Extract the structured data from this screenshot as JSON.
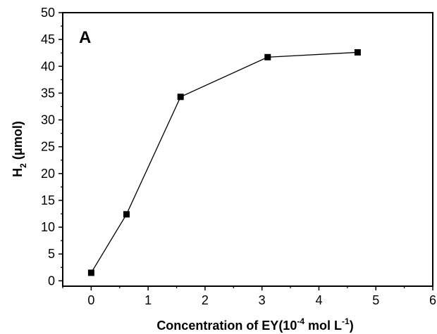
{
  "chart_data": {
    "type": "line",
    "panel_label": "A",
    "xlabel": {
      "main": "Concentration of EY(10",
      "sup1": "-4",
      "mid": " mol L",
      "sup2": "-1",
      "end": ")"
    },
    "ylabel": {
      "main": "H",
      "sub": "2",
      "rest": " (μmol)"
    },
    "xlim": [
      -0.5,
      6
    ],
    "ylim": [
      -1,
      50
    ],
    "xticks": [
      0,
      1,
      2,
      3,
      4,
      5,
      6
    ],
    "yticks": [
      0,
      5,
      10,
      15,
      20,
      25,
      30,
      35,
      40,
      45,
      50
    ],
    "grid": false,
    "series": [
      {
        "marker": "square",
        "color": "#000000",
        "x": [
          0,
          0.62,
          1.57,
          3.1,
          4.68
        ],
        "y": [
          1.5,
          12.4,
          34.3,
          41.7,
          42.6
        ]
      }
    ]
  }
}
